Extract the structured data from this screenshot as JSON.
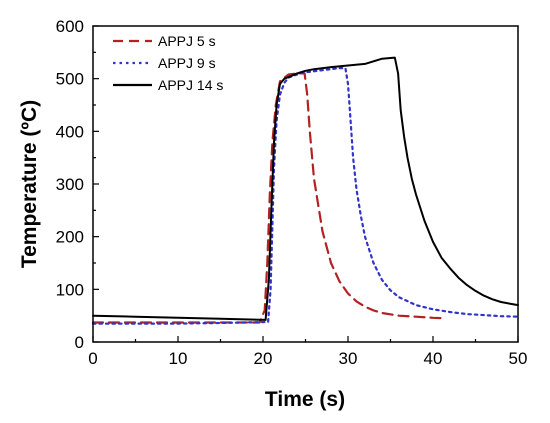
{
  "chart_data": {
    "type": "line",
    "xlabel": "Time (s)",
    "ylabel": "Temperature (ºC)",
    "xlim": [
      0,
      50
    ],
    "ylim": [
      0,
      600
    ],
    "xticks": [
      "0",
      "10",
      "20",
      "30",
      "40",
      "50"
    ],
    "yticks": [
      "0",
      "100",
      "200",
      "300",
      "400",
      "500",
      "600"
    ],
    "grid": false,
    "legend_position": "top-left",
    "series": [
      {
        "name": "APPJ 5 s",
        "color": "#b22222",
        "style": "dashed",
        "x": [
          0,
          5,
          10,
          15,
          19.6,
          20.2,
          20.5,
          20.8,
          21.1,
          21.5,
          22,
          23,
          24,
          24.9,
          25.2,
          25.5,
          26,
          27,
          28,
          29,
          30,
          31,
          32,
          33,
          34,
          36,
          38,
          40,
          41.5
        ],
        "y": [
          37,
          37,
          37,
          37,
          37,
          60,
          150,
          280,
          380,
          450,
          495,
          508,
          510,
          510,
          470,
          400,
          310,
          210,
          150,
          115,
          92,
          77,
          67,
          60,
          55,
          50,
          48,
          46,
          45
        ]
      },
      {
        "name": "APPJ 9 s",
        "color": "#3333cc",
        "style": "dotted",
        "x": [
          0,
          5,
          10,
          15,
          20.6,
          20.9,
          21.1,
          21.3,
          21.6,
          22,
          22.5,
          23,
          24,
          25,
          27,
          29,
          29.7,
          30,
          30.3,
          30.6,
          31,
          31.5,
          32,
          33,
          34,
          35,
          36,
          38,
          40,
          42,
          44,
          46,
          48,
          50
        ],
        "y": [
          35,
          35,
          35,
          36,
          38,
          100,
          220,
          330,
          420,
          470,
          492,
          502,
          508,
          512,
          516,
          520,
          520,
          490,
          420,
          350,
          290,
          240,
          200,
          150,
          118,
          98,
          85,
          70,
          62,
          57,
          53,
          51,
          49,
          48
        ]
      },
      {
        "name": "APPJ 14 s",
        "color": "#000000",
        "style": "solid",
        "x": [
          0,
          5,
          10,
          15,
          20.3,
          20.7,
          21,
          21.3,
          21.6,
          22,
          22.5,
          23,
          24,
          25,
          26,
          28,
          30,
          32,
          34,
          35.5,
          35.9,
          36.2,
          36.6,
          37,
          37.5,
          38,
          39,
          40,
          41,
          42,
          43,
          44,
          45,
          46,
          47,
          48,
          49,
          50
        ],
        "y": [
          50,
          48,
          46,
          44,
          42,
          120,
          260,
          380,
          450,
          490,
          500,
          503,
          510,
          515,
          518,
          522,
          525,
          528,
          538,
          540,
          510,
          440,
          390,
          350,
          310,
          280,
          230,
          190,
          160,
          140,
          122,
          108,
          97,
          88,
          81,
          76,
          73,
          70
        ]
      }
    ]
  }
}
